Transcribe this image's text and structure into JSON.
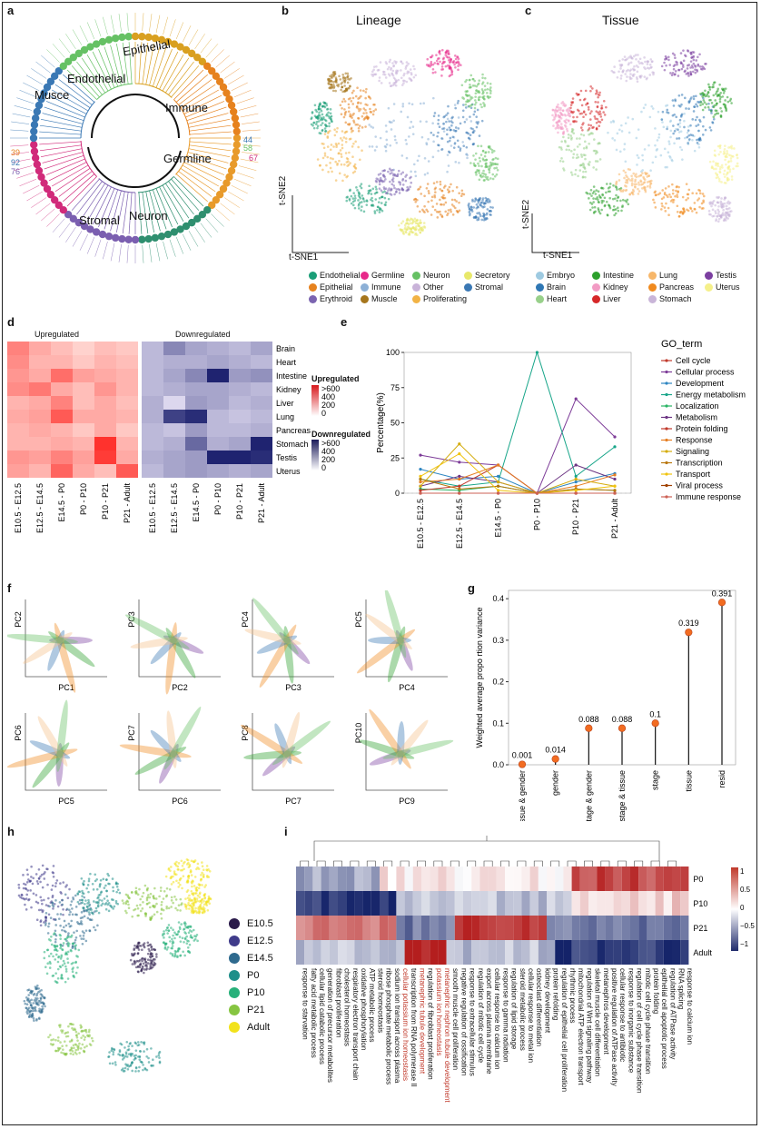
{
  "panels": {
    "a": "a",
    "b": "b",
    "c": "c",
    "d": "d",
    "e": "e",
    "f": "f",
    "g": "g",
    "h": "h",
    "i": "i"
  },
  "panel_a": {
    "labels": [
      "Endothelial",
      "Epithelial",
      "Musce",
      "Immune",
      "Germline",
      "Stromal",
      "Neuron"
    ],
    "numbers": [
      "44",
      "58",
      "67",
      "39",
      "76",
      "92"
    ]
  },
  "panel_b": {
    "title": "Lineage",
    "axis_y": "t-SNE2",
    "axis_x": "t-SNE1",
    "legend": [
      {
        "label": "Endothelial",
        "color": "#1a9e77"
      },
      {
        "label": "Germline",
        "color": "#e7298a"
      },
      {
        "label": "Neuron",
        "color": "#66c164"
      },
      {
        "label": "Secretory",
        "color": "#e8e86a"
      },
      {
        "label": "Epithelial",
        "color": "#e6821e"
      },
      {
        "label": "Immune",
        "color": "#8db0d6"
      },
      {
        "label": "Other",
        "color": "#c9b3d9"
      },
      {
        "label": "Stromal",
        "color": "#3a78b4"
      },
      {
        "label": "Erythroid",
        "color": "#7b64b0"
      },
      {
        "label": "Muscle",
        "color": "#a6761d"
      },
      {
        "label": "Proliferating",
        "color": "#f2b345"
      }
    ]
  },
  "panel_c": {
    "title": "Tissue",
    "axis_y": "t-SNE2",
    "axis_x": "t-SNE1",
    "legend": [
      {
        "label": "Embryo",
        "color": "#9ecae1"
      },
      {
        "label": "Intestine",
        "color": "#2ca02c"
      },
      {
        "label": "Lung",
        "color": "#f7b76a"
      },
      {
        "label": "Testis",
        "color": "#7b3fa0"
      },
      {
        "label": "Brain",
        "color": "#2f77b4"
      },
      {
        "label": "Kidney",
        "color": "#f29bc4"
      },
      {
        "label": "Pancreas",
        "color": "#f08a1e"
      },
      {
        "label": "Uterus",
        "color": "#f5f08a"
      },
      {
        "label": "Heart",
        "color": "#98d08a"
      },
      {
        "label": "Liver",
        "color": "#d62728"
      },
      {
        "label": "Stomach",
        "color": "#c9b5d8"
      }
    ]
  },
  "panel_d": {
    "up_label": "Upregulated",
    "down_label": "Downregulated",
    "rows": [
      "Brain",
      "Heart",
      "Intestine",
      "Kidney",
      "Liver",
      "Lung",
      "Pancreas",
      "Stomach",
      "Testis",
      "Uterus"
    ],
    "cols": [
      "E10.5 - E12.5",
      "E12.5 - E14.5",
      "E14.5 - P0",
      "P0 - P10",
      "P10 - P21",
      "P21 - Adult"
    ],
    "legend_up_title": "Upregulated",
    "legend_down_title": "Downregulated",
    "legend_ticks": [
      ">600",
      "400",
      "200",
      "0"
    ],
    "up_levels": [
      [
        0.55,
        0.35,
        0.25,
        0.15,
        0.25,
        0.2
      ],
      [
        0.5,
        0.3,
        0.3,
        0.2,
        0.3,
        0.25
      ],
      [
        0.45,
        0.35,
        0.65,
        0.4,
        0.35,
        0.3
      ],
      [
        0.5,
        0.6,
        0.35,
        0.25,
        0.45,
        0.3
      ],
      [
        0.3,
        0.35,
        0.55,
        0.25,
        0.35,
        0.25
      ],
      [
        0.35,
        0.4,
        0.75,
        0.35,
        0.35,
        0.3
      ],
      [
        0.3,
        0.35,
        0.3,
        0.2,
        0.35,
        0.2
      ],
      [
        0.3,
        0.3,
        0.35,
        0.3,
        0.95,
        0.3
      ],
      [
        0.45,
        0.4,
        0.55,
        0.4,
        0.9,
        0.35
      ],
      [
        0.4,
        0.3,
        0.7,
        0.35,
        0.25,
        0.75
      ]
    ],
    "down_levels": [
      [
        0.2,
        0.45,
        0.3,
        0.25,
        0.2,
        0.3
      ],
      [
        0.2,
        0.25,
        0.25,
        0.3,
        0.25,
        0.2
      ],
      [
        0.2,
        0.3,
        0.45,
        0.95,
        0.35,
        0.4
      ],
      [
        0.2,
        0.25,
        0.3,
        0.3,
        0.25,
        0.2
      ],
      [
        0.25,
        0.05,
        0.35,
        0.3,
        0.2,
        0.25
      ],
      [
        0.25,
        0.8,
        0.9,
        0.2,
        0.15,
        0.2
      ],
      [
        0.2,
        0.15,
        0.35,
        0.2,
        0.2,
        0.25
      ],
      [
        0.2,
        0.25,
        0.6,
        0.25,
        0.3,
        0.95
      ],
      [
        0.25,
        0.3,
        0.35,
        0.95,
        0.95,
        0.9
      ],
      [
        0.2,
        0.3,
        0.35,
        0.3,
        0.25,
        0.3
      ]
    ]
  },
  "chart_data": [
    {
      "type": "line",
      "panel": "e",
      "ylabel": "Percentage(%)",
      "legend_title": "GO_term",
      "categories": [
        "E10.5 - E12.5",
        "E12.5 - E14.5",
        "E14.5 - P0",
        "P0 - P10",
        "P10 - P21",
        "P21 - Adult"
      ],
      "yticks": [
        0,
        25,
        50,
        75,
        100
      ],
      "ylim": [
        0,
        100
      ],
      "series": [
        {
          "name": "Cell cycle",
          "color": "#c0392b",
          "values": [
            0,
            0,
            0,
            0,
            0,
            0
          ]
        },
        {
          "name": "Cellular process",
          "color": "#7d3c98",
          "values": [
            27,
            22,
            20,
            0,
            67,
            40
          ]
        },
        {
          "name": "Development",
          "color": "#2e86c1",
          "values": [
            17,
            10,
            12,
            0,
            8,
            14
          ]
        },
        {
          "name": "Energy metabolism",
          "color": "#17a589",
          "values": [
            10,
            5,
            8,
            100,
            12,
            33
          ]
        },
        {
          "name": "Localization",
          "color": "#28b463",
          "values": [
            3,
            2,
            5,
            0,
            3,
            2
          ]
        },
        {
          "name": "Metabolism",
          "color": "#6c3483",
          "values": [
            5,
            12,
            8,
            0,
            20,
            10
          ]
        },
        {
          "name": "Protein folding",
          "color": "#c0392b",
          "values": [
            2,
            5,
            20,
            0,
            0,
            0
          ]
        },
        {
          "name": "Response",
          "color": "#e67e22",
          "values": [
            8,
            10,
            20,
            0,
            5,
            13
          ]
        },
        {
          "name": "Signaling",
          "color": "#d4ac0d",
          "values": [
            5,
            35,
            8,
            0,
            10,
            5
          ]
        },
        {
          "name": "Transcription",
          "color": "#b9770e",
          "values": [
            10,
            3,
            5,
            0,
            3,
            2
          ]
        },
        {
          "name": "Transport",
          "color": "#f1c40f",
          "values": [
            12,
            28,
            2,
            0,
            2,
            5
          ]
        },
        {
          "name": "Viral process",
          "color": "#a04000",
          "values": [
            0,
            0,
            0,
            0,
            0,
            0
          ]
        },
        {
          "name": "Immune response",
          "color": "#cd6155",
          "values": [
            0,
            0,
            0,
            0,
            0,
            0
          ]
        }
      ]
    },
    {
      "type": "bar",
      "panel": "g",
      "ylabel": "Weighted average propo rtion variance",
      "categories": [
        "tissue & gender",
        "gender",
        "stage & gender",
        "stage & tissue",
        "stage",
        "tissue",
        "resid"
      ],
      "values": [
        0.001,
        0.014,
        0.088,
        0.088,
        0.1,
        0.319,
        0.391
      ],
      "value_labels": [
        "0.001",
        "0.014",
        "0.088",
        "0.088",
        "0.1",
        "0.319",
        "0.391"
      ],
      "yticks": [
        "0.0",
        "0.1",
        "0.2",
        "0.3",
        "0.4"
      ],
      "ylim": [
        0,
        0.42
      ]
    }
  ],
  "panel_f": {
    "pairs": [
      {
        "y": "PC2",
        "x": "PC1"
      },
      {
        "y": "PC3",
        "x": "PC2"
      },
      {
        "y": "PC4",
        "x": "PC3"
      },
      {
        "y": "PC5",
        "x": "PC4"
      },
      {
        "y": "PC6",
        "x": "PC5"
      },
      {
        "y": "PC7",
        "x": "PC6"
      },
      {
        "y": "PC8",
        "x": "PC7"
      },
      {
        "y": "PC10",
        "x": "PC9"
      }
    ]
  },
  "panel_h": {
    "legend": [
      {
        "label": "E10.5",
        "color": "#2a1a4a"
      },
      {
        "label": "E12.5",
        "color": "#3f3b8a"
      },
      {
        "label": "E14.5",
        "color": "#2e6a8e"
      },
      {
        "label": "P0",
        "color": "#1f8f8a"
      },
      {
        "label": "P10",
        "color": "#27b07a"
      },
      {
        "label": "P21",
        "color": "#86c541"
      },
      {
        "label": "Adult",
        "color": "#f2e21b"
      }
    ]
  },
  "panel_i": {
    "rows": [
      "P0",
      "P10",
      "P21",
      "Adult"
    ],
    "legend_ticks": [
      "1",
      "0.5",
      "0",
      "−0.5",
      "−1"
    ],
    "terms": [
      "response to starvation",
      "fatty acid metabolic process",
      "cellular lipid catabolic process",
      "generation of precursor metabolites",
      "fibroblast proliferation",
      "cholesterol homeostasis",
      "respiratory electron transport chain",
      "oxidative phosphorylation",
      "ATP metabolic process",
      "steroid homeostasis",
      "ribose phosphate metabolic process",
      "sodium ion transport across plasma",
      "cellular potassium ion homeostasis",
      "transcription from RNA polymerase II",
      "metanephric tubule development",
      "regulation of fibroblast proliferation",
      "potassium ion homeostasis",
      "metanephric nephron tubule development",
      "smooth muscle cell proliferation",
      "negative regulation of ossification",
      "response to extracellular stimulus",
      "regulation of mitotic cell cycle",
      "export across plasma membrane",
      "cellular response to calcium ion",
      "response to gamma radiation",
      "regulation of lipid storage",
      "steroid metabolic process",
      "cellular response to metal ion",
      "osteoclast differentiation",
      "kidney development",
      "protein refolding",
      "regulation of epithelial cell proliferation",
      "rhythmic process",
      "mitochondrial ATP electron transport",
      "regulation of Wnt signaling pathway",
      "skeletal muscle cell differentiation",
      "metanephros development",
      "positive regulation of ATPase activity",
      "cellular response to antibiotic",
      "response to inorganic substance",
      "regulation of cell cycle phase transition",
      "mitotic cell cycle phase transition",
      "protein folding",
      "epithelial cell apoptotic process",
      "regulation of ATPase activity",
      "RNA splicing",
      "response to calcium ion"
    ],
    "red_terms": [
      12,
      14,
      16,
      17
    ]
  }
}
